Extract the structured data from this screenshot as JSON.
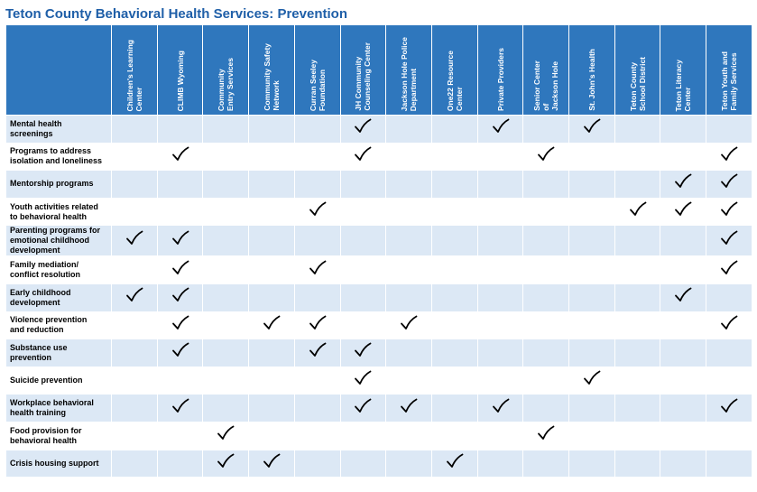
{
  "title": "Teton County Behavioral Health Services: Prevention",
  "colors": {
    "title": "#1f5fa8",
    "header_bg": "#2f77bd",
    "row_alt": "#dce8f5"
  },
  "columns": [
    "Children's Learning\nCenter",
    "CLIMB Wyoming",
    "Community\nEntry Services",
    "Community Safety\nNetwork",
    "Curran Seeley\nFoundation",
    "JH Community\nCounseling Center",
    "Jackson Hole Police\nDepartment",
    "One22 Resource\nCenter",
    "Private Providers",
    "Senior Center\nof\nJackson Hole",
    "St. John's  Health",
    "Teton County\nSchool District",
    "Teton Literacy\nCenter",
    "Teton Youth and\nFamily Services"
  ],
  "rows": [
    {
      "label": "Mental health\nscreenings",
      "checks": [
        0,
        0,
        0,
        0,
        0,
        1,
        0,
        0,
        1,
        0,
        1,
        0,
        0,
        0
      ]
    },
    {
      "label": "Programs to address\nisolation and loneliness",
      "checks": [
        0,
        1,
        0,
        0,
        0,
        1,
        0,
        0,
        0,
        1,
        0,
        0,
        0,
        1
      ]
    },
    {
      "label": "Mentorship programs",
      "checks": [
        0,
        0,
        0,
        0,
        0,
        0,
        0,
        0,
        0,
        0,
        0,
        0,
        1,
        1
      ]
    },
    {
      "label": "Youth activities related\nto behavioral health",
      "checks": [
        0,
        0,
        0,
        0,
        1,
        0,
        0,
        0,
        0,
        0,
        0,
        1,
        1,
        1
      ]
    },
    {
      "label": "Parenting programs for\nemotional childhood\ndevelopment",
      "checks": [
        1,
        1,
        0,
        0,
        0,
        0,
        0,
        0,
        0,
        0,
        0,
        0,
        0,
        1
      ]
    },
    {
      "label": "Family mediation/\nconflict resolution",
      "checks": [
        0,
        1,
        0,
        0,
        1,
        0,
        0,
        0,
        0,
        0,
        0,
        0,
        0,
        1
      ]
    },
    {
      "label": "Early childhood\ndevelopment",
      "checks": [
        1,
        1,
        0,
        0,
        0,
        0,
        0,
        0,
        0,
        0,
        0,
        0,
        1,
        0
      ]
    },
    {
      "label": "Violence prevention\nand reduction",
      "checks": [
        0,
        1,
        0,
        1,
        1,
        0,
        1,
        0,
        0,
        0,
        0,
        0,
        0,
        1
      ]
    },
    {
      "label": "Substance use\nprevention",
      "checks": [
        0,
        1,
        0,
        0,
        1,
        1,
        0,
        0,
        0,
        0,
        0,
        0,
        0,
        0
      ]
    },
    {
      "label": "Suicide prevention",
      "checks": [
        0,
        0,
        0,
        0,
        0,
        1,
        0,
        0,
        0,
        0,
        1,
        0,
        0,
        0
      ]
    },
    {
      "label": "Workplace behavioral\nhealth training",
      "checks": [
        0,
        1,
        0,
        0,
        0,
        1,
        1,
        0,
        1,
        0,
        0,
        0,
        0,
        1
      ]
    },
    {
      "label": "Food provision for\nbehavioral health",
      "checks": [
        0,
        0,
        1,
        0,
        0,
        0,
        0,
        0,
        0,
        1,
        0,
        0,
        0,
        0
      ]
    },
    {
      "label": "Crisis housing support",
      "checks": [
        0,
        0,
        1,
        1,
        0,
        0,
        0,
        1,
        0,
        0,
        0,
        0,
        0,
        0
      ]
    }
  ]
}
